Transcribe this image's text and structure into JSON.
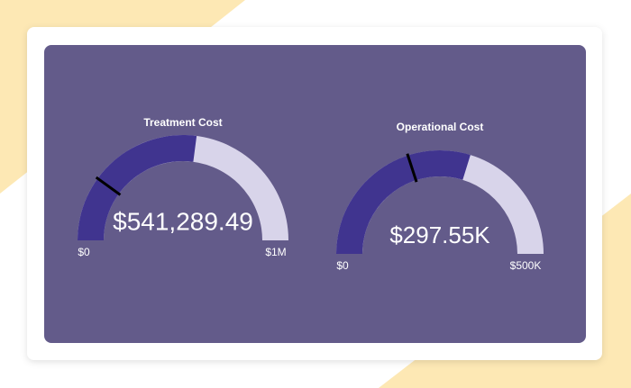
{
  "chart_data": [
    {
      "type": "gauge",
      "title": "Treatment Cost",
      "value": 541289.49,
      "value_label": "$541,289.49",
      "target": 200000,
      "ylim": [
        0,
        1000000
      ],
      "yticks": [
        {
          "value": 0,
          "label": "$0"
        },
        {
          "value": 1000000,
          "label": "$1M"
        }
      ],
      "color": "#40348f",
      "track_color": "#d8d4ea",
      "target_color": "#000000"
    },
    {
      "type": "gauge",
      "title": "Operational Cost",
      "value": 297550,
      "value_label": "$297.55K",
      "target": 200000,
      "ylim": [
        0,
        500000
      ],
      "yticks": [
        {
          "value": 0,
          "label": "$0"
        },
        {
          "value": 500000,
          "label": "$500K"
        }
      ],
      "color": "#40348f",
      "track_color": "#d8d4ea",
      "target_color": "#000000"
    }
  ]
}
